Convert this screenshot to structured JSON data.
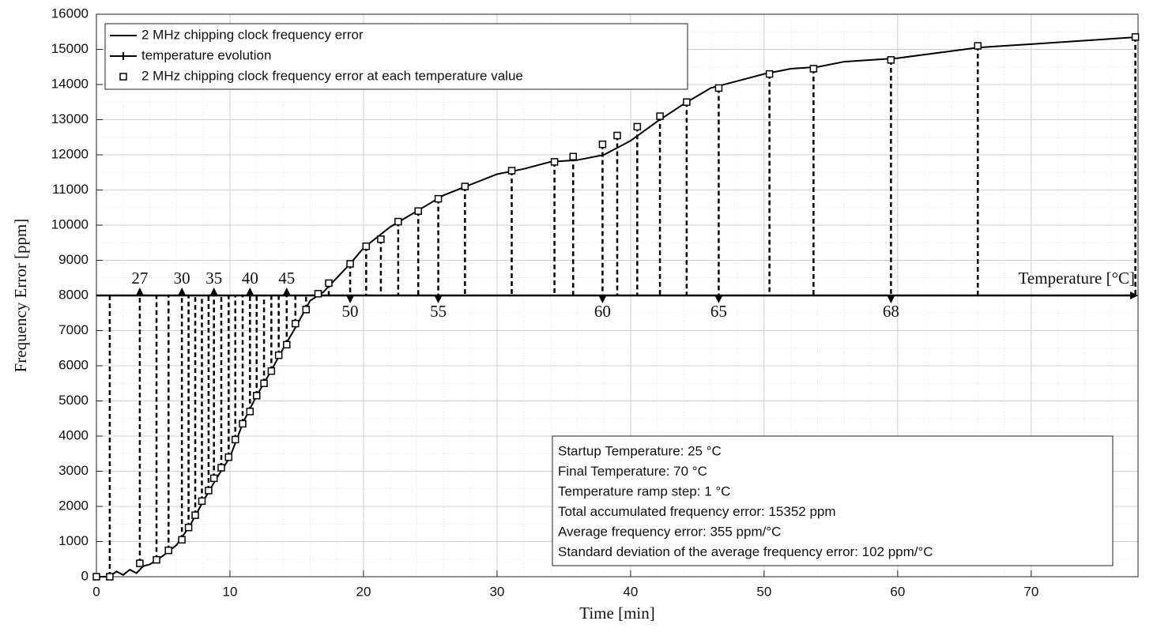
{
  "chart_data": {
    "type": "line",
    "x_label": "Time [min]",
    "y_label": "Frequency Error [ppm]",
    "xlim": [
      0,
      78
    ],
    "xticks": [
      0,
      10,
      20,
      30,
      40,
      50,
      60,
      70
    ],
    "ylim": [
      0,
      16000
    ],
    "yticks": [
      0,
      1000,
      2000,
      3000,
      4000,
      5000,
      6000,
      7000,
      8000,
      9000,
      10000,
      11000,
      12000,
      13000,
      14000,
      15000,
      16000
    ],
    "grid": true,
    "minor_grid": true,
    "legend_location": "northwest",
    "series": [
      {
        "name": "2 MHz chipping clock frequency error",
        "color": "#000000",
        "x": [
          0,
          1,
          1.5,
          2,
          2.5,
          3,
          3.5,
          4,
          5,
          6,
          7,
          8,
          9,
          10,
          11,
          12,
          13,
          14,
          15,
          16,
          17,
          18,
          19,
          20,
          22,
          24,
          26,
          28,
          30,
          32,
          34,
          36,
          38,
          40,
          42,
          44,
          46,
          48,
          50,
          52,
          54,
          56,
          58,
          60,
          62,
          64,
          66,
          68,
          70,
          72,
          74,
          76,
          78
        ],
        "values": [
          0,
          0,
          150,
          50,
          200,
          100,
          300,
          350,
          600,
          900,
          1450,
          2150,
          2800,
          3400,
          4400,
          5150,
          5800,
          6500,
          7150,
          7850,
          8100,
          8500,
          8900,
          9350,
          9950,
          10400,
          10850,
          11150,
          11450,
          11600,
          11800,
          11850,
          12000,
          12400,
          12950,
          13450,
          13900,
          14100,
          14300,
          14450,
          14500,
          14650,
          14700,
          14750,
          14850,
          14950,
          15050,
          15100,
          15150,
          15200,
          15250,
          15300,
          15352
        ]
      },
      {
        "name": "temperature evolution",
        "color": "#000000",
        "value": 8000
      },
      {
        "name": "2 MHz chipping clock frequency error at each temperature value",
        "color": "#000000",
        "temperatures": [
          25,
          26,
          27,
          28,
          29,
          30,
          31,
          32,
          33,
          34,
          35,
          36,
          37,
          38,
          39,
          40,
          41,
          42,
          43,
          44,
          45,
          46,
          47,
          48,
          49,
          50,
          51,
          52,
          53,
          54,
          55,
          56,
          57,
          58,
          59,
          60,
          61,
          62,
          63,
          64,
          65,
          66,
          67,
          68,
          69,
          70
        ],
        "x": [
          0,
          1.0,
          3.25,
          4.5,
          5.4,
          6.4,
          6.9,
          7.4,
          7.9,
          8.4,
          8.8,
          9.35,
          9.9,
          10.4,
          10.95,
          11.5,
          12.0,
          12.55,
          13.1,
          13.65,
          14.25,
          14.9,
          15.7,
          16.6,
          17.4,
          19.0,
          20.2,
          21.3,
          22.6,
          24.1,
          25.6,
          27.6,
          31.1,
          34.3,
          35.7,
          37.9,
          39.0,
          40.5,
          42.2,
          44.2,
          46.6,
          50.4,
          53.7,
          59.5,
          66.0,
          77.8
        ],
        "values": [
          0,
          0,
          380,
          480,
          750,
          1050,
          1400,
          1750,
          2150,
          2450,
          2800,
          3100,
          3400,
          3900,
          4350,
          4700,
          5150,
          5500,
          5850,
          6300,
          6600,
          7200,
          7600,
          8050,
          8350,
          8900,
          9400,
          9600,
          10100,
          10400,
          10750,
          11100,
          11550,
          11800,
          11950,
          12300,
          12550,
          12800,
          13100,
          13500,
          13900,
          14300,
          14450,
          14700,
          15100,
          15352
        ]
      }
    ],
    "temperature_label": "Temperature [°C]",
    "temperature_ticks": [
      27,
      30,
      35,
      40,
      45,
      50,
      55,
      60,
      65,
      68
    ],
    "annotation": [
      "Startup Temperature: 25 °C",
      "Final Temperature: 70 °C",
      "Temperature ramp step: 1 °C",
      "Total accumulated frequency error: 15352 ppm",
      "Average frequency error: 355 ppm/°C",
      "Standard deviation of the average frequency error: 102 ppm/°C"
    ]
  }
}
